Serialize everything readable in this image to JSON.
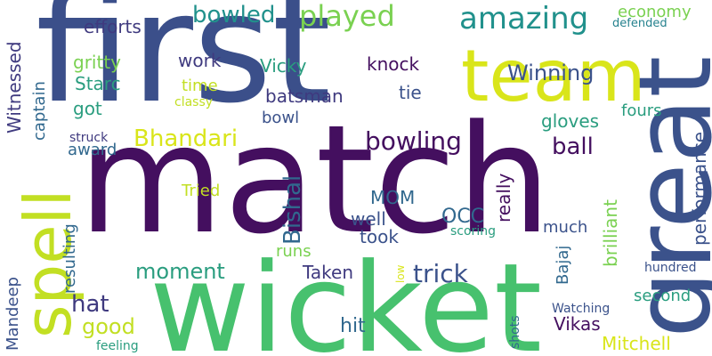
{
  "words": {
    "first": "first",
    "match": "match",
    "wicket": "wicket",
    "great": "great",
    "team": "team",
    "spell": "spell",
    "amazing": "amazing",
    "played": "played",
    "bowled": "bowled",
    "efforts": "efforts",
    "economy": "economy",
    "defended": "defended",
    "winning": "Winning",
    "witnessed": "Witnessed",
    "gritty": "gritty",
    "work": "work",
    "vicky": "Vicky",
    "knock": "knock",
    "starc": "Starc",
    "time": "time",
    "tie": "tie",
    "fours": "fours",
    "captain": "captain",
    "classy": "classy",
    "batsman": "batsman",
    "got": "got",
    "bowl": "bowl",
    "performance": "performance",
    "gloves": "gloves",
    "bhandari": "Bhandari",
    "bowling": "bowling",
    "struck": "struck",
    "award": "award",
    "ball": "ball",
    "bishal": "Bishal",
    "tried": "Tried",
    "really": "really",
    "mom": "MOM",
    "occ": "OCC",
    "well": "well",
    "took": "took",
    "much": "much",
    "brilliant": "brilliant",
    "resulting": "resulting",
    "scoring": "scoring",
    "runs": "runs",
    "bajaj": "Bajaj",
    "hundred": "hundred",
    "moment": "moment",
    "trick": "trick",
    "taken": "Taken",
    "second": "second",
    "low": "low",
    "mandeep": "Mandeep",
    "hat": "hat",
    "good": "good",
    "vikas": "Vikas",
    "hit": "hit",
    "watching": "Watching",
    "shots": "shots",
    "feeling": "feeling",
    "mitchell": "Mitchell"
  }
}
